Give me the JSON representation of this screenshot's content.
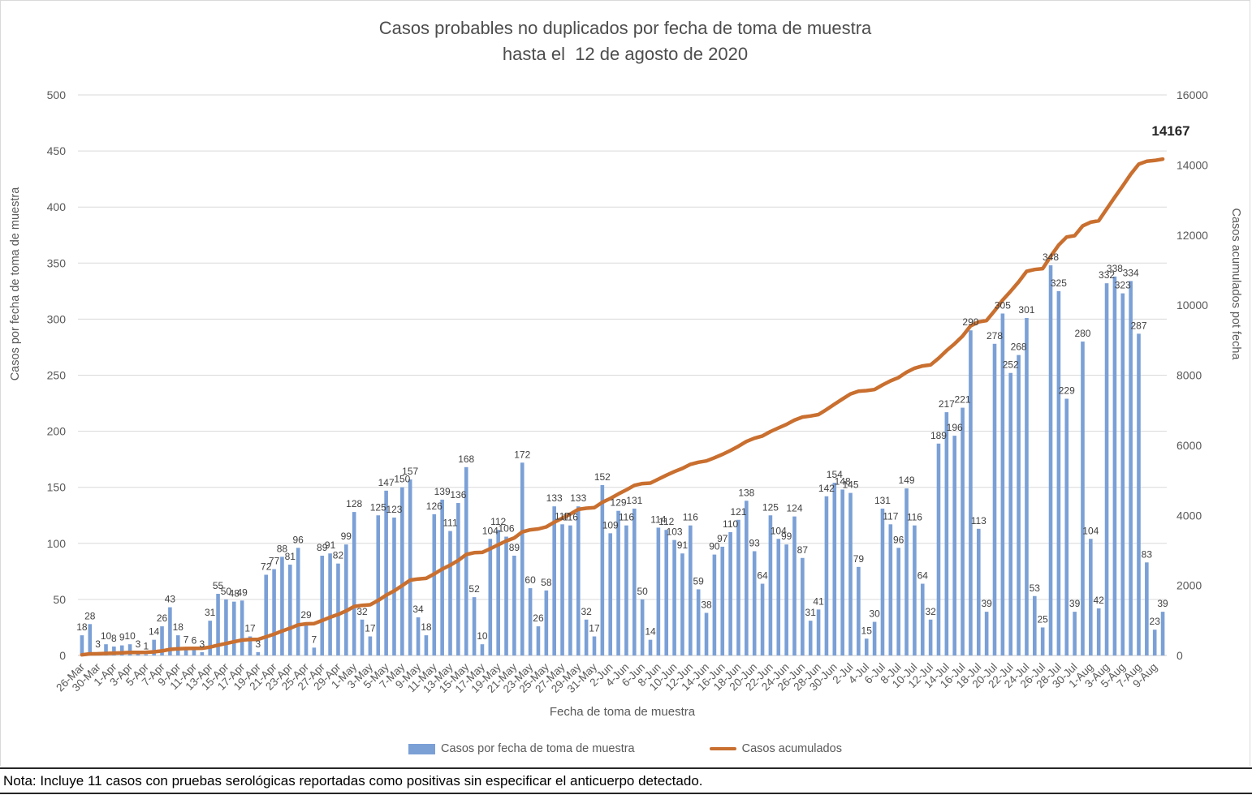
{
  "note": "Nota: Incluye 11 casos con pruebas serológicas reportadas como positivas sin especificar el anticuerpo detectado.",
  "chart_data": {
    "type": "bar",
    "title": {
      "line1": "Casos probables no duplicados por fecha de toma de muestra",
      "line2": "hasta el  12 de agosto de 2020"
    },
    "xlabel": "Fecha de toma de muestra",
    "ylabel_left": "Casos por fecha de toma de muestra",
    "ylabel_right": "Casos acumulados pot fecha",
    "y_left": {
      "min": 0,
      "max": 500,
      "step": 50
    },
    "y_right": {
      "min": 0,
      "max": 16000,
      "step": 2000
    },
    "grid": true,
    "tick_every": 2,
    "x_tick_labels": [
      "26-Mar",
      "30-Mar",
      "1-Apr",
      "3-Apr",
      "5-Apr",
      "7-Apr",
      "9-Apr",
      "11-Apr",
      "13-Apr",
      "15-Apr",
      "17-Apr",
      "19-Apr",
      "21-Apr",
      "23-Apr",
      "25-Apr",
      "27-Apr",
      "29-Apr",
      "1-May",
      "3-May",
      "5-May",
      "7-May",
      "9-May",
      "11-May",
      "13-May",
      "15-May",
      "17-May",
      "19-May",
      "21-May",
      "23-May",
      "25-May",
      "27-May",
      "29-May",
      "31-May",
      "2-Jun",
      "4-Jun",
      "6-Jun",
      "8-Jun",
      "10-Jun",
      "12-Jun",
      "14-Jun",
      "16-Jun",
      "18-Jun",
      "20-Jun",
      "22-Jun",
      "24-Jun",
      "26-Jun",
      "28-Jun",
      "30-Jun",
      "2-Jul",
      "4-Jul",
      "6-Jul",
      "8-Jul",
      "10-Jul",
      "12-Jul",
      "14-Jul",
      "16-Jul",
      "18-Jul",
      "20-Jul",
      "22-Jul",
      "24-Jul",
      "26-Jul",
      "28-Jul",
      "30-Jul",
      "1-Aug",
      "3-Aug",
      "5-Aug",
      "7-Aug",
      "9-Aug"
    ],
    "series": [
      {
        "name": "Casos por fecha de toma de muestra",
        "type": "bar",
        "axis": "left",
        "values": [
          18,
          28,
          3,
          10,
          8,
          9,
          10,
          3,
          1,
          14,
          26,
          43,
          18,
          7,
          6,
          3,
          31,
          55,
          50,
          48,
          49,
          17,
          3,
          72,
          77,
          88,
          81,
          96,
          29,
          7,
          89,
          91,
          82,
          99,
          128,
          32,
          17,
          125,
          147,
          123,
          150,
          157,
          34,
          18,
          126,
          139,
          111,
          136,
          168,
          52,
          10,
          104,
          112,
          106,
          89,
          172,
          60,
          26,
          58,
          133,
          117,
          116,
          133,
          32,
          17,
          152,
          109,
          129,
          116,
          131,
          50,
          14,
          114,
          112,
          103,
          91,
          116,
          59,
          38,
          90,
          97,
          110,
          121,
          138,
          93,
          64,
          125,
          104,
          99,
          124,
          87,
          31,
          41,
          142,
          154,
          148,
          145,
          79,
          15,
          30,
          131,
          117,
          96,
          149,
          116,
          64,
          32,
          189,
          217,
          196,
          221,
          290,
          113,
          39,
          278,
          305,
          252,
          268,
          301,
          53,
          25,
          348,
          325,
          229,
          39,
          280,
          104,
          42,
          332,
          338,
          323,
          334,
          287,
          83,
          23,
          39
        ]
      },
      {
        "name": "Casos acumulados",
        "type": "line",
        "axis": "right",
        "derived": "cumulative_sum_of_bar_series",
        "end_label": "14167"
      }
    ],
    "legend": {
      "position": "bottom",
      "items": [
        {
          "label": "Casos por fecha de toma de muestra",
          "type": "bar"
        },
        {
          "label": "Casos acumulados",
          "type": "line"
        }
      ]
    },
    "colors": {
      "bar": "#7BA0D6",
      "line": "#C96F2F",
      "grid": "#D9D9D9",
      "axis_line": "#C9C9C9",
      "axis_text": "#595959",
      "value_label": "#404040",
      "end_label": "#262626",
      "title": "#4d4d4d"
    }
  }
}
